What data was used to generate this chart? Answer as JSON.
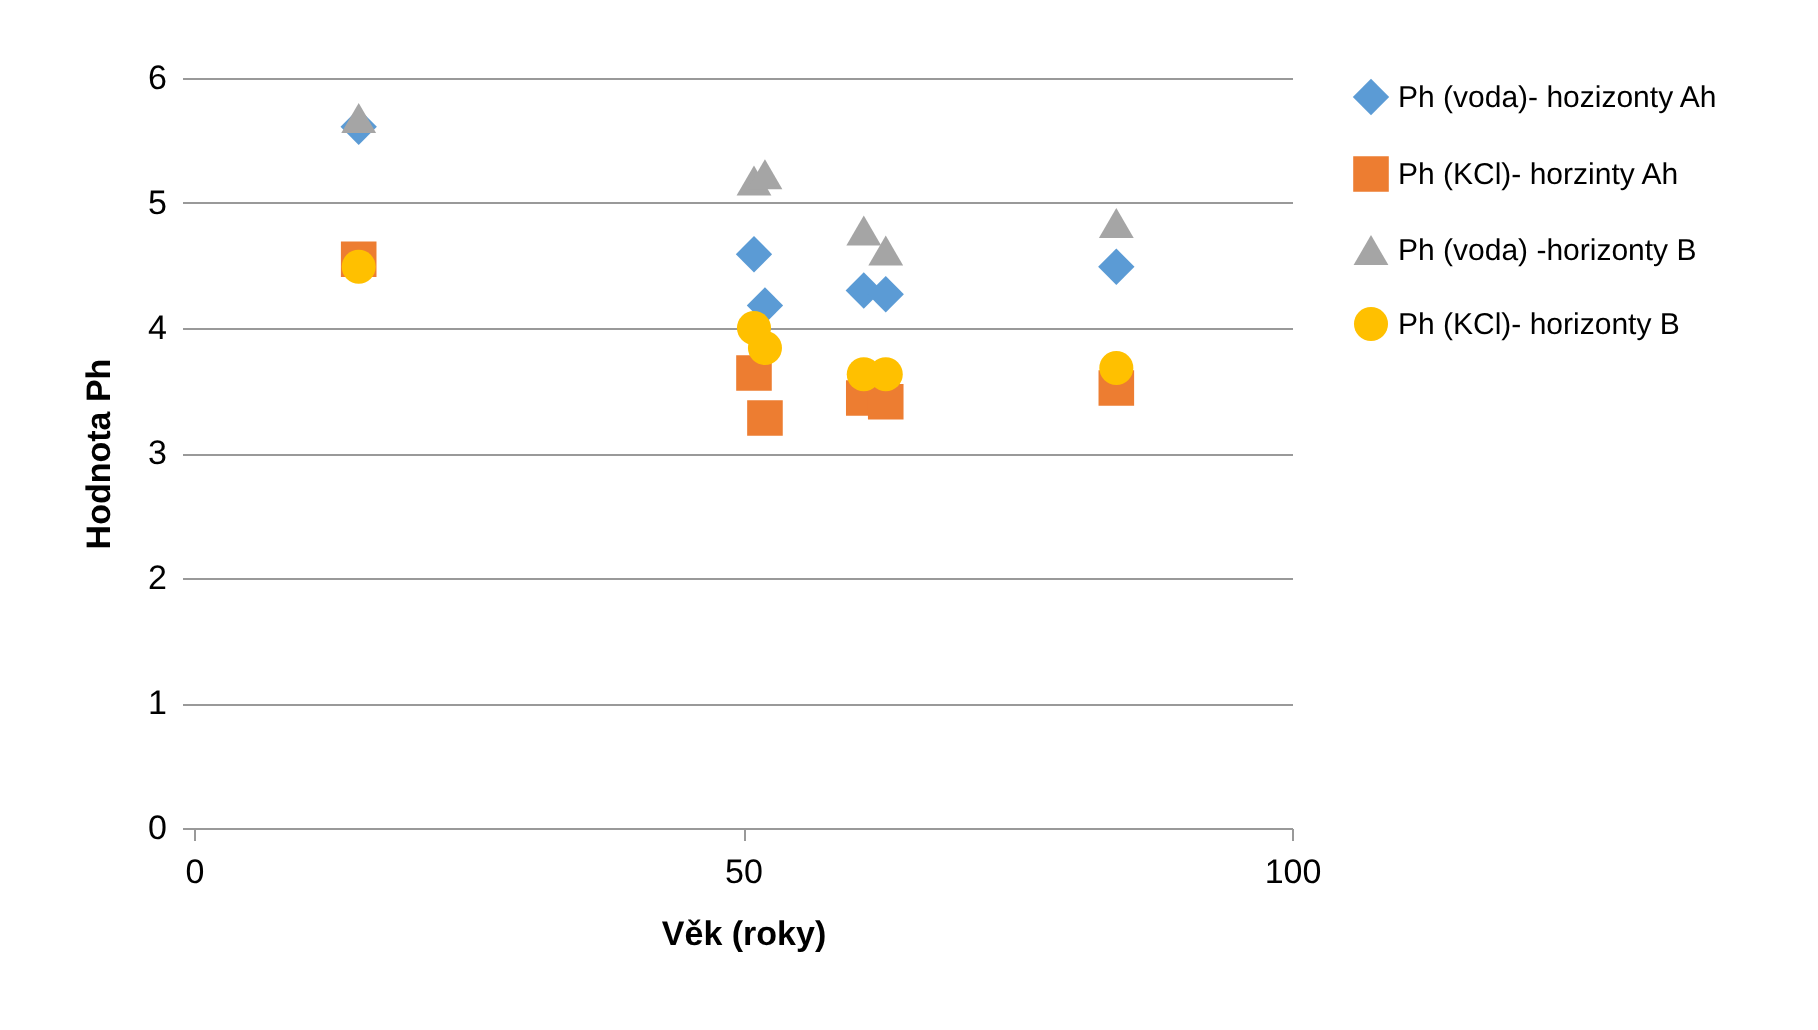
{
  "chart_data": {
    "type": "scatter",
    "xlabel": "Věk (roky)",
    "ylabel": "Hodnota Ph",
    "xlim": [
      0,
      100
    ],
    "xticks": [
      0,
      50,
      100
    ],
    "ylim": [
      0,
      6
    ],
    "yticks": [
      0,
      1,
      2,
      3,
      4,
      5,
      6
    ],
    "grid": "y",
    "legend": "right",
    "series": [
      {
        "name": "Ph (voda)- hozizonty Ah",
        "color": "#5b9bd5",
        "marker": "diamond",
        "x": [
          15,
          51,
          52,
          61,
          63,
          84
        ],
        "values": [
          5.61,
          4.59,
          4.18,
          4.3,
          4.27,
          4.49
        ]
      },
      {
        "name": "Ph (KCl)- horzinty Ah",
        "color": "#ed7d31",
        "marker": "square",
        "x": [
          15,
          51,
          52,
          61,
          63,
          84
        ],
        "values": [
          4.55,
          3.64,
          3.28,
          3.44,
          3.41,
          3.52
        ]
      },
      {
        "name": "Ph (voda) -horizonty B",
        "color": "#a5a5a5",
        "marker": "triangle",
        "x": [
          15,
          51,
          52,
          61,
          63,
          84
        ],
        "values": [
          5.68,
          5.18,
          5.23,
          4.78,
          4.62,
          4.84
        ]
      },
      {
        "name": "Ph (KCl)- horizonty B",
        "color": "#ffc000",
        "marker": "circle",
        "x": [
          15,
          51,
          52,
          61,
          63,
          84
        ],
        "values": [
          4.49,
          4.0,
          3.84,
          3.63,
          3.63,
          3.68
        ]
      }
    ]
  }
}
